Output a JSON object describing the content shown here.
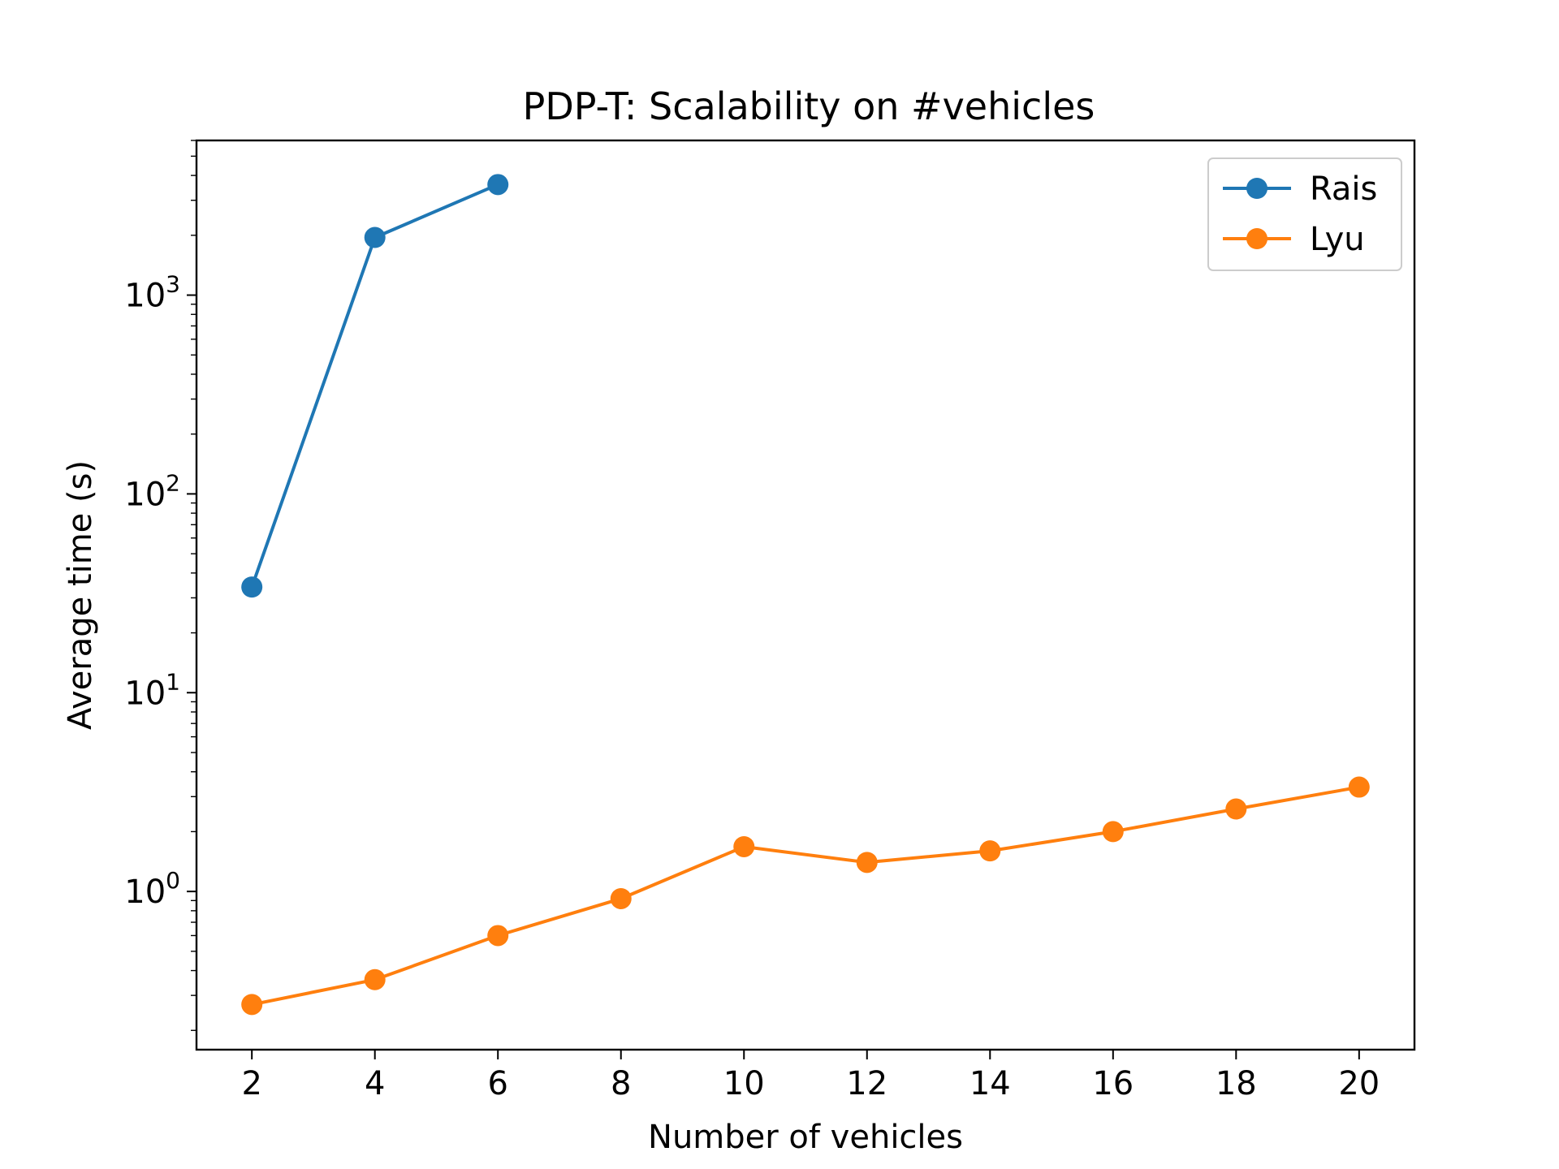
{
  "chart_data": {
    "type": "line",
    "title": "PDP-T: Scalability on #vehicles",
    "xlabel": "Number of vehicles",
    "ylabel": "Average time (s)",
    "xlim": [
      1.1,
      20.9
    ],
    "ylim": [
      0.16,
      6000
    ],
    "yscale": "log",
    "x_ticks": [
      2,
      4,
      6,
      8,
      10,
      12,
      14,
      16,
      18,
      20
    ],
    "y_ticks": [
      {
        "value": 1,
        "base": "10",
        "exp": "0"
      },
      {
        "value": 10,
        "base": "10",
        "exp": "1"
      },
      {
        "value": 100,
        "base": "10",
        "exp": "2"
      },
      {
        "value": 1000,
        "base": "10",
        "exp": "3"
      }
    ],
    "grid": false,
    "legend_position": "top-right",
    "series": [
      {
        "name": "Rais",
        "color": "#1f77b4",
        "x": [
          2,
          4,
          6
        ],
        "y": [
          34,
          1950,
          3600
        ]
      },
      {
        "name": "Lyu",
        "color": "#ff7f0e",
        "x": [
          2,
          4,
          6,
          8,
          10,
          12,
          14,
          16,
          18,
          20
        ],
        "y": [
          0.27,
          0.36,
          0.6,
          0.92,
          1.68,
          1.4,
          1.6,
          2.0,
          2.6,
          3.35
        ]
      }
    ]
  }
}
